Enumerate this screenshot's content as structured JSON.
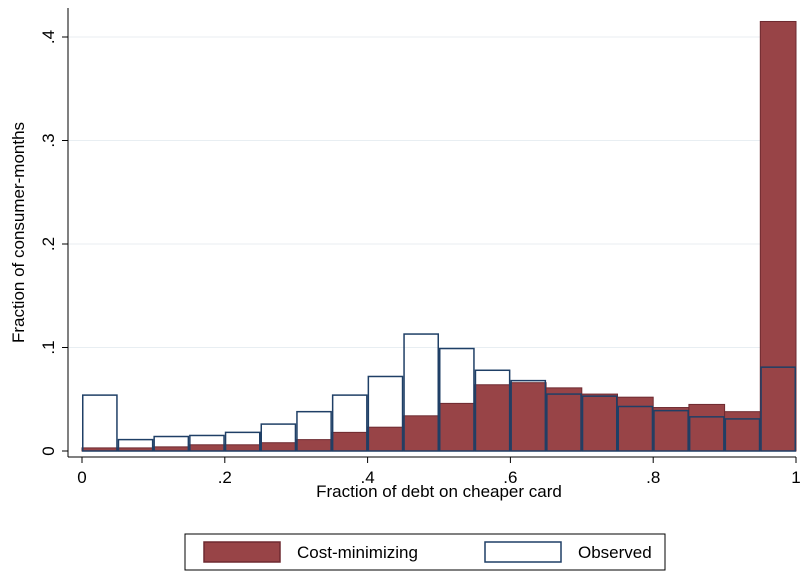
{
  "chart_data": {
    "type": "bar",
    "xlabel": "Fraction of debt on cheaper card",
    "ylabel": "Fraction of consumer-months",
    "xlim": [
      0,
      1
    ],
    "ylim": [
      0,
      0.42
    ],
    "x_ticks": [
      {
        "value": 0,
        "label": "0"
      },
      {
        "value": 0.2,
        "label": ".2"
      },
      {
        "value": 0.4,
        "label": ".4"
      },
      {
        "value": 0.6,
        "label": ".6"
      },
      {
        "value": 0.8,
        "label": ".8"
      },
      {
        "value": 1,
        "label": "1"
      }
    ],
    "y_ticks": [
      {
        "value": 0,
        "label": "0"
      },
      {
        "value": 0.1,
        "label": ".1"
      },
      {
        "value": 0.2,
        "label": ".2"
      },
      {
        "value": 0.3,
        "label": ".3"
      },
      {
        "value": 0.4,
        "label": ".4"
      }
    ],
    "grid": "horizontal",
    "legend_position": "bottom",
    "bin_width": 0.05,
    "bin_starts": [
      0,
      0.05,
      0.1,
      0.15,
      0.2,
      0.25,
      0.3,
      0.35,
      0.4,
      0.45,
      0.5,
      0.55,
      0.6,
      0.65,
      0.7,
      0.75,
      0.8,
      0.85,
      0.9,
      0.95
    ],
    "series": [
      {
        "name": "Cost-minimizing",
        "style": "filled",
        "fill": "#984447",
        "stroke": "#6e2a30",
        "values": [
          0.003,
          0.003,
          0.004,
          0.006,
          0.006,
          0.008,
          0.011,
          0.018,
          0.023,
          0.034,
          0.046,
          0.064,
          0.066,
          0.061,
          0.055,
          0.052,
          0.042,
          0.045,
          0.038,
          0.415
        ]
      },
      {
        "name": "Observed",
        "style": "outline",
        "stroke": "#1f3f66",
        "values": [
          0.054,
          0.011,
          0.014,
          0.015,
          0.018,
          0.026,
          0.038,
          0.054,
          0.072,
          0.113,
          0.099,
          0.078,
          0.068,
          0.055,
          0.053,
          0.043,
          0.039,
          0.033,
          0.031,
          0.081
        ]
      }
    ]
  }
}
